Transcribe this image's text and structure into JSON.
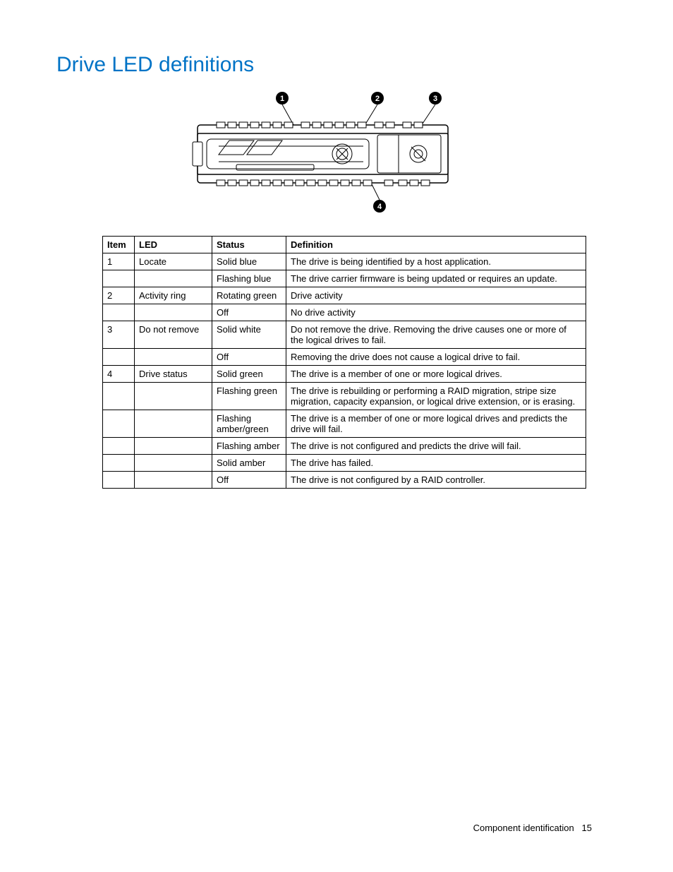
{
  "title": "Drive LED definitions",
  "title_color": "#0073c6",
  "diagram": {
    "callouts": [
      "1",
      "2",
      "3",
      "4"
    ]
  },
  "table": {
    "headers": {
      "item": "Item",
      "led": "LED",
      "status": "Status",
      "definition": "Definition"
    },
    "rows": [
      {
        "item": "1",
        "led": "Locate",
        "status": "Solid blue",
        "definition": "The drive is being identified by a host application."
      },
      {
        "item": "",
        "led": "",
        "status": "Flashing blue",
        "definition": "The drive carrier firmware is being updated or requires an update."
      },
      {
        "item": "2",
        "led": "Activity ring",
        "status": "Rotating green",
        "definition": "Drive activity"
      },
      {
        "item": "",
        "led": "",
        "status": "Off",
        "definition": "No drive activity"
      },
      {
        "item": "3",
        "led": "Do not remove",
        "status": "Solid white",
        "definition": "Do not remove the drive. Removing the drive causes one or more of the logical drives to fail."
      },
      {
        "item": "",
        "led": "",
        "status": "Off",
        "definition": "Removing the drive does not cause a logical drive to fail."
      },
      {
        "item": "4",
        "led": "Drive status",
        "status": "Solid green",
        "definition": "The drive is a member of one or more logical drives."
      },
      {
        "item": "",
        "led": "",
        "status": "Flashing green",
        "definition": "The drive is rebuilding or performing a RAID migration, stripe size migration, capacity expansion, or logical drive extension, or is erasing."
      },
      {
        "item": "",
        "led": "",
        "status": "Flashing amber/green",
        "definition": "The drive is a member of one or more logical drives and predicts the drive will fail."
      },
      {
        "item": "",
        "led": "",
        "status": "Flashing amber",
        "definition": "The drive is not configured and predicts the drive will fail."
      },
      {
        "item": "",
        "led": "",
        "status": "Solid amber",
        "definition": "The drive has failed."
      },
      {
        "item": "",
        "led": "",
        "status": "Off",
        "definition": "The drive is not configured by a RAID controller."
      }
    ]
  },
  "footer": {
    "section": "Component identification",
    "page": "15"
  }
}
